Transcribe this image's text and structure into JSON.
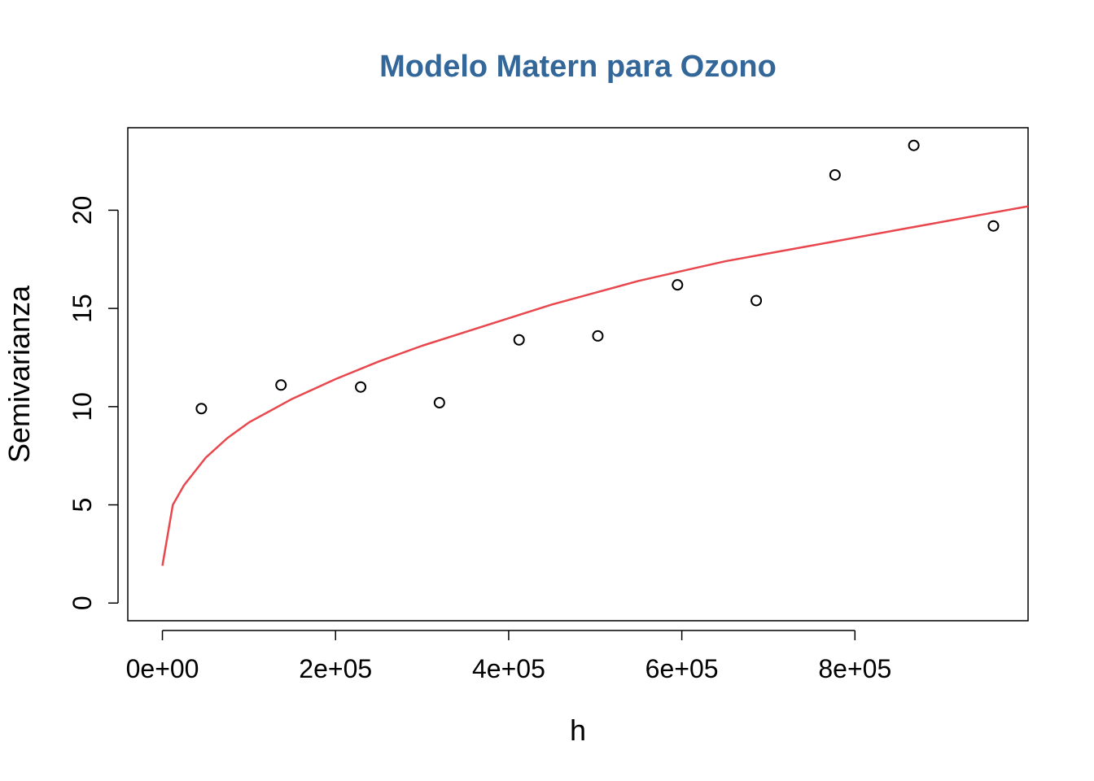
{
  "chart_data": {
    "type": "scatter",
    "title": "Modelo Matern para Ozono",
    "xlabel": "h",
    "ylabel": "Semivarianza",
    "xlim": [
      -40000,
      1000000
    ],
    "ylim": [
      -0.9,
      24.2
    ],
    "xticks": [
      0,
      200000,
      400000,
      600000,
      800000
    ],
    "xtick_labels": [
      "0e+00",
      "2e+05",
      "4e+05",
      "6e+05",
      "8e+05"
    ],
    "yticks": [
      0,
      5,
      10,
      15,
      20
    ],
    "ytick_labels": [
      "0",
      "5",
      "10",
      "15",
      "20"
    ],
    "grid": false,
    "colors": {
      "title": "#336699",
      "points": "#000000",
      "model_line": "#e8474d",
      "frame": "#000000"
    },
    "series": [
      {
        "type": "scatter",
        "x": [
          45000,
          137000,
          229000,
          320000,
          412000,
          503000,
          595000,
          686000,
          777000,
          868000,
          960000
        ],
        "y": [
          9.9,
          11.1,
          11.0,
          10.2,
          13.4,
          13.6,
          16.2,
          15.4,
          21.8,
          23.3,
          19.2
        ]
      },
      {
        "type": "line",
        "x": [
          0,
          12000,
          25000,
          50000,
          75000,
          100000,
          150000,
          200000,
          250000,
          300000,
          350000,
          400000,
          450000,
          500000,
          550000,
          600000,
          650000,
          700000,
          750000,
          800000,
          850000,
          900000,
          950000,
          1000000
        ],
        "y": [
          1.9,
          5.0,
          6.0,
          7.4,
          8.4,
          9.2,
          10.4,
          11.4,
          12.3,
          13.1,
          13.8,
          14.5,
          15.2,
          15.8,
          16.4,
          16.9,
          17.4,
          17.8,
          18.2,
          18.6,
          19.0,
          19.4,
          19.8,
          20.2
        ]
      }
    ]
  }
}
